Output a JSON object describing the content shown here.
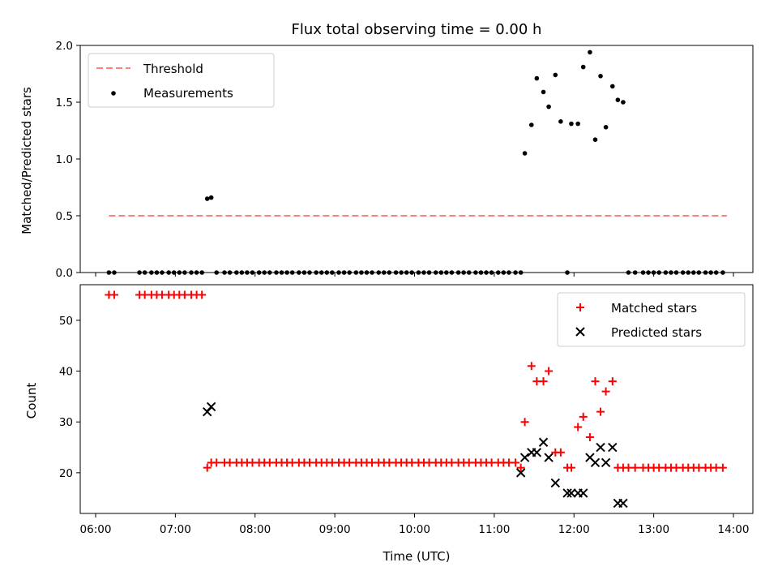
{
  "chart_data": [
    {
      "type": "scatter",
      "title": "Flux total observing time = 0.00 h",
      "ylabel": "Matched/Predicted stars",
      "xlabel": "",
      "ylim": [
        0,
        2.0
      ],
      "yticks": [
        "0.0",
        "0.5",
        "1.0",
        "1.5",
        "2.0"
      ],
      "xlim": [
        "06:00",
        "14:00"
      ],
      "grid": false,
      "legend_position": "top-left",
      "series": [
        {
          "name": "Threshold",
          "kind": "dashed-line",
          "color": "#ff7f7f",
          "x": [
            "06:10",
            "13:55"
          ],
          "y": [
            0.5,
            0.5
          ]
        },
        {
          "name": "Measurements",
          "kind": "dots",
          "color": "#000000",
          "x": [
            "06:10",
            "06:14",
            "06:33",
            "06:37",
            "06:42",
            "06:46",
            "06:50",
            "06:55",
            "06:59",
            "07:03",
            "07:07",
            "07:12",
            "07:16",
            "07:20",
            "07:24",
            "07:27",
            "07:31",
            "07:37",
            "07:41",
            "07:46",
            "07:50",
            "07:54",
            "07:58",
            "08:03",
            "08:07",
            "08:11",
            "08:16",
            "08:20",
            "08:24",
            "08:28",
            "08:33",
            "08:37",
            "08:41",
            "08:46",
            "08:50",
            "08:54",
            "08:58",
            "09:03",
            "09:07",
            "09:11",
            "09:16",
            "09:20",
            "09:24",
            "09:28",
            "09:33",
            "09:37",
            "09:41",
            "09:46",
            "09:50",
            "09:54",
            "09:58",
            "10:03",
            "10:07",
            "10:11",
            "10:16",
            "10:20",
            "10:24",
            "10:28",
            "10:33",
            "10:37",
            "10:41",
            "10:46",
            "10:50",
            "10:54",
            "10:58",
            "11:03",
            "11:07",
            "11:11",
            "11:16",
            "11:20",
            "11:23",
            "11:28",
            "11:32",
            "11:37",
            "11:41",
            "11:46",
            "11:50",
            "11:55",
            "11:58",
            "12:03",
            "12:07",
            "12:12",
            "12:16",
            "12:20",
            "12:24",
            "12:29",
            "12:33",
            "12:37",
            "12:41",
            "12:46",
            "12:52",
            "12:56",
            "13:00",
            "13:04",
            "13:09",
            "13:13",
            "13:17",
            "13:22",
            "13:26",
            "13:30",
            "13:34",
            "13:39",
            "13:43",
            "13:47",
            "13:52"
          ],
          "y": [
            0,
            0,
            0,
            0,
            0,
            0,
            0,
            0,
            0,
            0,
            0,
            0,
            0,
            0,
            0.65,
            0.66,
            0,
            0,
            0,
            0,
            0,
            0,
            0,
            0,
            0,
            0,
            0,
            0,
            0,
            0,
            0,
            0,
            0,
            0,
            0,
            0,
            0,
            0,
            0,
            0,
            0,
            0,
            0,
            0,
            0,
            0,
            0,
            0,
            0,
            0,
            0,
            0,
            0,
            0,
            0,
            0,
            0,
            0,
            0,
            0,
            0,
            0,
            0,
            0,
            0,
            0,
            0,
            0,
            0,
            0,
            1.05,
            1.3,
            1.71,
            1.59,
            1.46,
            1.74,
            1.33,
            0,
            1.31,
            1.31,
            1.81,
            1.94,
            1.17,
            1.73,
            1.28,
            1.64,
            1.52,
            1.5,
            0,
            0,
            0,
            0,
            0,
            0,
            0,
            0,
            0,
            0,
            0,
            0,
            0,
            0,
            0,
            0,
            0
          ]
        }
      ]
    },
    {
      "type": "scatter",
      "title": "",
      "ylabel": "Count",
      "xlabel": "Time (UTC)",
      "ylim": [
        12,
        57
      ],
      "yticks": [
        "20",
        "30",
        "40",
        "50"
      ],
      "xticks": [
        "06:00",
        "07:00",
        "08:00",
        "09:00",
        "10:00",
        "11:00",
        "12:00",
        "13:00",
        "14:00"
      ],
      "xlim": [
        "06:00",
        "14:00"
      ],
      "grid": false,
      "legend_position": "top-right",
      "series": [
        {
          "name": "Matched stars",
          "marker": "plus",
          "color": "#ff0000",
          "x": [
            "06:10",
            "06:14",
            "06:33",
            "06:37",
            "06:42",
            "06:46",
            "06:50",
            "06:55",
            "06:59",
            "07:03",
            "07:07",
            "07:12",
            "07:16",
            "07:20",
            "07:24",
            "07:27",
            "07:31",
            "07:37",
            "07:41",
            "07:46",
            "07:50",
            "07:54",
            "07:58",
            "08:03",
            "08:07",
            "08:11",
            "08:16",
            "08:20",
            "08:24",
            "08:28",
            "08:33",
            "08:37",
            "08:41",
            "08:46",
            "08:50",
            "08:54",
            "08:58",
            "09:03",
            "09:07",
            "09:11",
            "09:16",
            "09:20",
            "09:24",
            "09:28",
            "09:33",
            "09:37",
            "09:41",
            "09:46",
            "09:50",
            "09:54",
            "09:58",
            "10:03",
            "10:07",
            "10:11",
            "10:16",
            "10:20",
            "10:24",
            "10:28",
            "10:33",
            "10:37",
            "10:41",
            "10:46",
            "10:50",
            "10:54",
            "10:58",
            "11:03",
            "11:07",
            "11:11",
            "11:16",
            "11:20",
            "11:23",
            "11:28",
            "11:32",
            "11:37",
            "11:41",
            "11:46",
            "11:50",
            "11:55",
            "11:58",
            "12:03",
            "12:07",
            "12:12",
            "12:16",
            "12:20",
            "12:24",
            "12:29",
            "12:33",
            "12:37",
            "12:41",
            "12:46",
            "12:52",
            "12:56",
            "13:00",
            "13:04",
            "13:09",
            "13:13",
            "13:17",
            "13:22",
            "13:26",
            "13:30",
            "13:34",
            "13:39",
            "13:43",
            "13:47",
            "13:52"
          ],
          "y": [
            55,
            55,
            55,
            55,
            55,
            55,
            55,
            55,
            55,
            55,
            55,
            55,
            55,
            55,
            21,
            22,
            22,
            22,
            22,
            22,
            22,
            22,
            22,
            22,
            22,
            22,
            22,
            22,
            22,
            22,
            22,
            22,
            22,
            22,
            22,
            22,
            22,
            22,
            22,
            22,
            22,
            22,
            22,
            22,
            22,
            22,
            22,
            22,
            22,
            22,
            22,
            22,
            22,
            22,
            22,
            22,
            22,
            22,
            22,
            22,
            22,
            22,
            22,
            22,
            22,
            22,
            22,
            22,
            22,
            21,
            30,
            41,
            38,
            38,
            40,
            24,
            24,
            21,
            21,
            29,
            31,
            27,
            38,
            32,
            36,
            38,
            21,
            21,
            21,
            21,
            21,
            21,
            21,
            21,
            21,
            21,
            21,
            21,
            21,
            21,
            21,
            21,
            21,
            21,
            21
          ]
        },
        {
          "name": "Predicted stars",
          "marker": "x",
          "color": "#000000",
          "x": [
            "07:24",
            "07:27",
            "11:20",
            "11:23",
            "11:28",
            "11:32",
            "11:37",
            "11:41",
            "11:46",
            "11:55",
            "11:58",
            "12:03",
            "12:07",
            "12:12",
            "12:16",
            "12:20",
            "12:24",
            "12:29",
            "12:33",
            "12:37"
          ],
          "y": [
            32,
            33,
            20,
            23,
            24,
            24,
            26,
            23,
            18,
            16,
            16,
            16,
            16,
            23,
            22,
            25,
            22,
            25,
            14,
            14
          ]
        }
      ]
    }
  ]
}
